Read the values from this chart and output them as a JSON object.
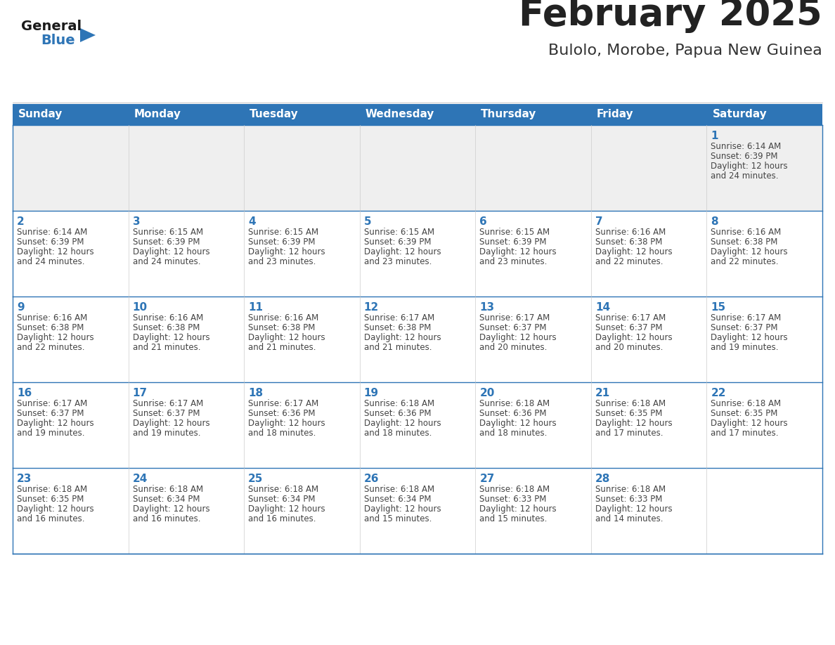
{
  "title": "February 2025",
  "subtitle": "Bulolo, Morobe, Papua New Guinea",
  "header_bg": "#2E75B6",
  "header_text_color": "#FFFFFF",
  "header_days": [
    "Sunday",
    "Monday",
    "Tuesday",
    "Wednesday",
    "Thursday",
    "Friday",
    "Saturday"
  ],
  "background_color": "#FFFFFF",
  "row1_bg": "#EFEFEF",
  "cell_bg": "#FFFFFF",
  "border_color": "#2E75B6",
  "vert_border_color": "#CCCCCC",
  "day_number_color": "#2E75B6",
  "info_text_color": "#444444",
  "title_color": "#222222",
  "subtitle_color": "#333333",
  "logo_general_color": "#1A1A1A",
  "logo_blue_color": "#2E75B6",
  "calendar_data": [
    [
      null,
      null,
      null,
      null,
      null,
      null,
      {
        "day": 1,
        "sunrise": "6:14 AM",
        "sunset": "6:39 PM",
        "daylight": "12 hours and 24 minutes."
      }
    ],
    [
      {
        "day": 2,
        "sunrise": "6:14 AM",
        "sunset": "6:39 PM",
        "daylight": "12 hours and 24 minutes."
      },
      {
        "day": 3,
        "sunrise": "6:15 AM",
        "sunset": "6:39 PM",
        "daylight": "12 hours and 24 minutes."
      },
      {
        "day": 4,
        "sunrise": "6:15 AM",
        "sunset": "6:39 PM",
        "daylight": "12 hours and 23 minutes."
      },
      {
        "day": 5,
        "sunrise": "6:15 AM",
        "sunset": "6:39 PM",
        "daylight": "12 hours and 23 minutes."
      },
      {
        "day": 6,
        "sunrise": "6:15 AM",
        "sunset": "6:39 PM",
        "daylight": "12 hours and 23 minutes."
      },
      {
        "day": 7,
        "sunrise": "6:16 AM",
        "sunset": "6:38 PM",
        "daylight": "12 hours and 22 minutes."
      },
      {
        "day": 8,
        "sunrise": "6:16 AM",
        "sunset": "6:38 PM",
        "daylight": "12 hours and 22 minutes."
      }
    ],
    [
      {
        "day": 9,
        "sunrise": "6:16 AM",
        "sunset": "6:38 PM",
        "daylight": "12 hours and 22 minutes."
      },
      {
        "day": 10,
        "sunrise": "6:16 AM",
        "sunset": "6:38 PM",
        "daylight": "12 hours and 21 minutes."
      },
      {
        "day": 11,
        "sunrise": "6:16 AM",
        "sunset": "6:38 PM",
        "daylight": "12 hours and 21 minutes."
      },
      {
        "day": 12,
        "sunrise": "6:17 AM",
        "sunset": "6:38 PM",
        "daylight": "12 hours and 21 minutes."
      },
      {
        "day": 13,
        "sunrise": "6:17 AM",
        "sunset": "6:37 PM",
        "daylight": "12 hours and 20 minutes."
      },
      {
        "day": 14,
        "sunrise": "6:17 AM",
        "sunset": "6:37 PM",
        "daylight": "12 hours and 20 minutes."
      },
      {
        "day": 15,
        "sunrise": "6:17 AM",
        "sunset": "6:37 PM",
        "daylight": "12 hours and 19 minutes."
      }
    ],
    [
      {
        "day": 16,
        "sunrise": "6:17 AM",
        "sunset": "6:37 PM",
        "daylight": "12 hours and 19 minutes."
      },
      {
        "day": 17,
        "sunrise": "6:17 AM",
        "sunset": "6:37 PM",
        "daylight": "12 hours and 19 minutes."
      },
      {
        "day": 18,
        "sunrise": "6:17 AM",
        "sunset": "6:36 PM",
        "daylight": "12 hours and 18 minutes."
      },
      {
        "day": 19,
        "sunrise": "6:18 AM",
        "sunset": "6:36 PM",
        "daylight": "12 hours and 18 minutes."
      },
      {
        "day": 20,
        "sunrise": "6:18 AM",
        "sunset": "6:36 PM",
        "daylight": "12 hours and 18 minutes."
      },
      {
        "day": 21,
        "sunrise": "6:18 AM",
        "sunset": "6:35 PM",
        "daylight": "12 hours and 17 minutes."
      },
      {
        "day": 22,
        "sunrise": "6:18 AM",
        "sunset": "6:35 PM",
        "daylight": "12 hours and 17 minutes."
      }
    ],
    [
      {
        "day": 23,
        "sunrise": "6:18 AM",
        "sunset": "6:35 PM",
        "daylight": "12 hours and 16 minutes."
      },
      {
        "day": 24,
        "sunrise": "6:18 AM",
        "sunset": "6:34 PM",
        "daylight": "12 hours and 16 minutes."
      },
      {
        "day": 25,
        "sunrise": "6:18 AM",
        "sunset": "6:34 PM",
        "daylight": "12 hours and 16 minutes."
      },
      {
        "day": 26,
        "sunrise": "6:18 AM",
        "sunset": "6:34 PM",
        "daylight": "12 hours and 15 minutes."
      },
      {
        "day": 27,
        "sunrise": "6:18 AM",
        "sunset": "6:33 PM",
        "daylight": "12 hours and 15 minutes."
      },
      {
        "day": 28,
        "sunrise": "6:18 AM",
        "sunset": "6:33 PM",
        "daylight": "12 hours and 14 minutes."
      },
      null
    ]
  ]
}
